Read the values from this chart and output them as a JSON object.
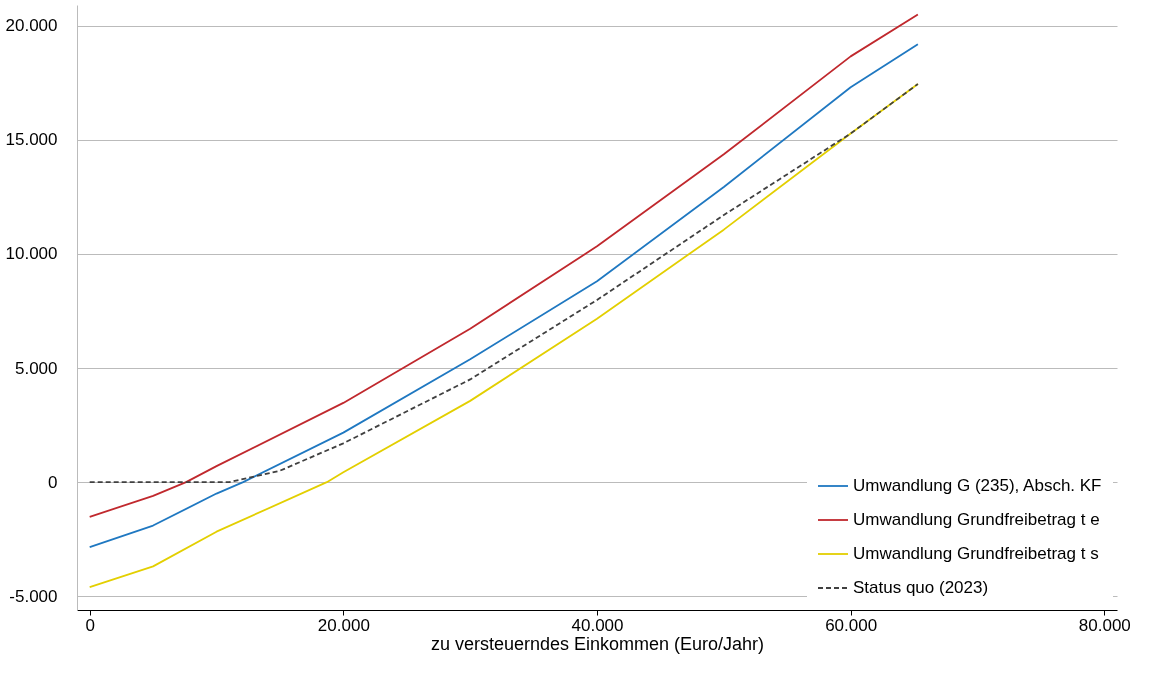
{
  "chart_data": {
    "type": "line",
    "xlabel": "zu versteuerndes Einkommen (Euro/Jahr)",
    "xlim": [
      -1000,
      81000
    ],
    "ylim": [
      -5600,
      20900
    ],
    "xticks": [
      {
        "value": 0,
        "label": "0"
      },
      {
        "value": 20000,
        "label": "20.000"
      },
      {
        "value": 40000,
        "label": "40.000"
      },
      {
        "value": 60000,
        "label": "60.000"
      },
      {
        "value": 80000,
        "label": "80.000"
      }
    ],
    "yticks": [
      {
        "value": -5000,
        "label": "-5.000"
      },
      {
        "value": 0,
        "label": "0"
      },
      {
        "value": 5000,
        "label": "5.000"
      },
      {
        "value": 10000,
        "label": "10.000"
      },
      {
        "value": 15000,
        "label": "15.000"
      },
      {
        "value": 20000,
        "label": "20.000"
      }
    ],
    "grid": "y",
    "legend": "bottom right",
    "series": [
      {
        "name": "Umwandlung G (235), Absch. KF",
        "color": "#1f78c1",
        "line_style": "solid",
        "x": [
          0,
          5000,
          10000,
          12100,
          20000,
          30000,
          40000,
          50000,
          60000,
          65300
        ],
        "values": [
          -2850,
          -1900,
          -500,
          0,
          2170,
          5380,
          8800,
          12930,
          17300,
          19180
        ]
      },
      {
        "name": "Umwandlung Grundfreibetrag t e",
        "color": "#c0282d",
        "line_style": "solid",
        "x": [
          0,
          5000,
          7600,
          10000,
          20000,
          30000,
          40000,
          50000,
          60000,
          65300
        ],
        "values": [
          -1520,
          -600,
          0,
          700,
          3470,
          6720,
          10330,
          14360,
          18650,
          20480
        ]
      },
      {
        "name": "Umwandlung Grundfreibetrag t s",
        "color": "#e3cf00",
        "line_style": "solid",
        "x": [
          0,
          5000,
          10000,
          18700,
          20000,
          30000,
          40000,
          50000,
          60000,
          65300
        ],
        "values": [
          -4600,
          -3690,
          -2170,
          0,
          430,
          3560,
          7160,
          11060,
          15270,
          17440
        ]
      },
      {
        "name": "Status quo (2023)",
        "color": "#404040",
        "line_style": "dashed",
        "x": [
          0,
          11000,
          15000,
          20000,
          30000,
          40000,
          50000,
          60000,
          65300
        ],
        "values": [
          0,
          0,
          500,
          1700,
          4500,
          7980,
          11700,
          15270,
          17440
        ]
      }
    ]
  }
}
